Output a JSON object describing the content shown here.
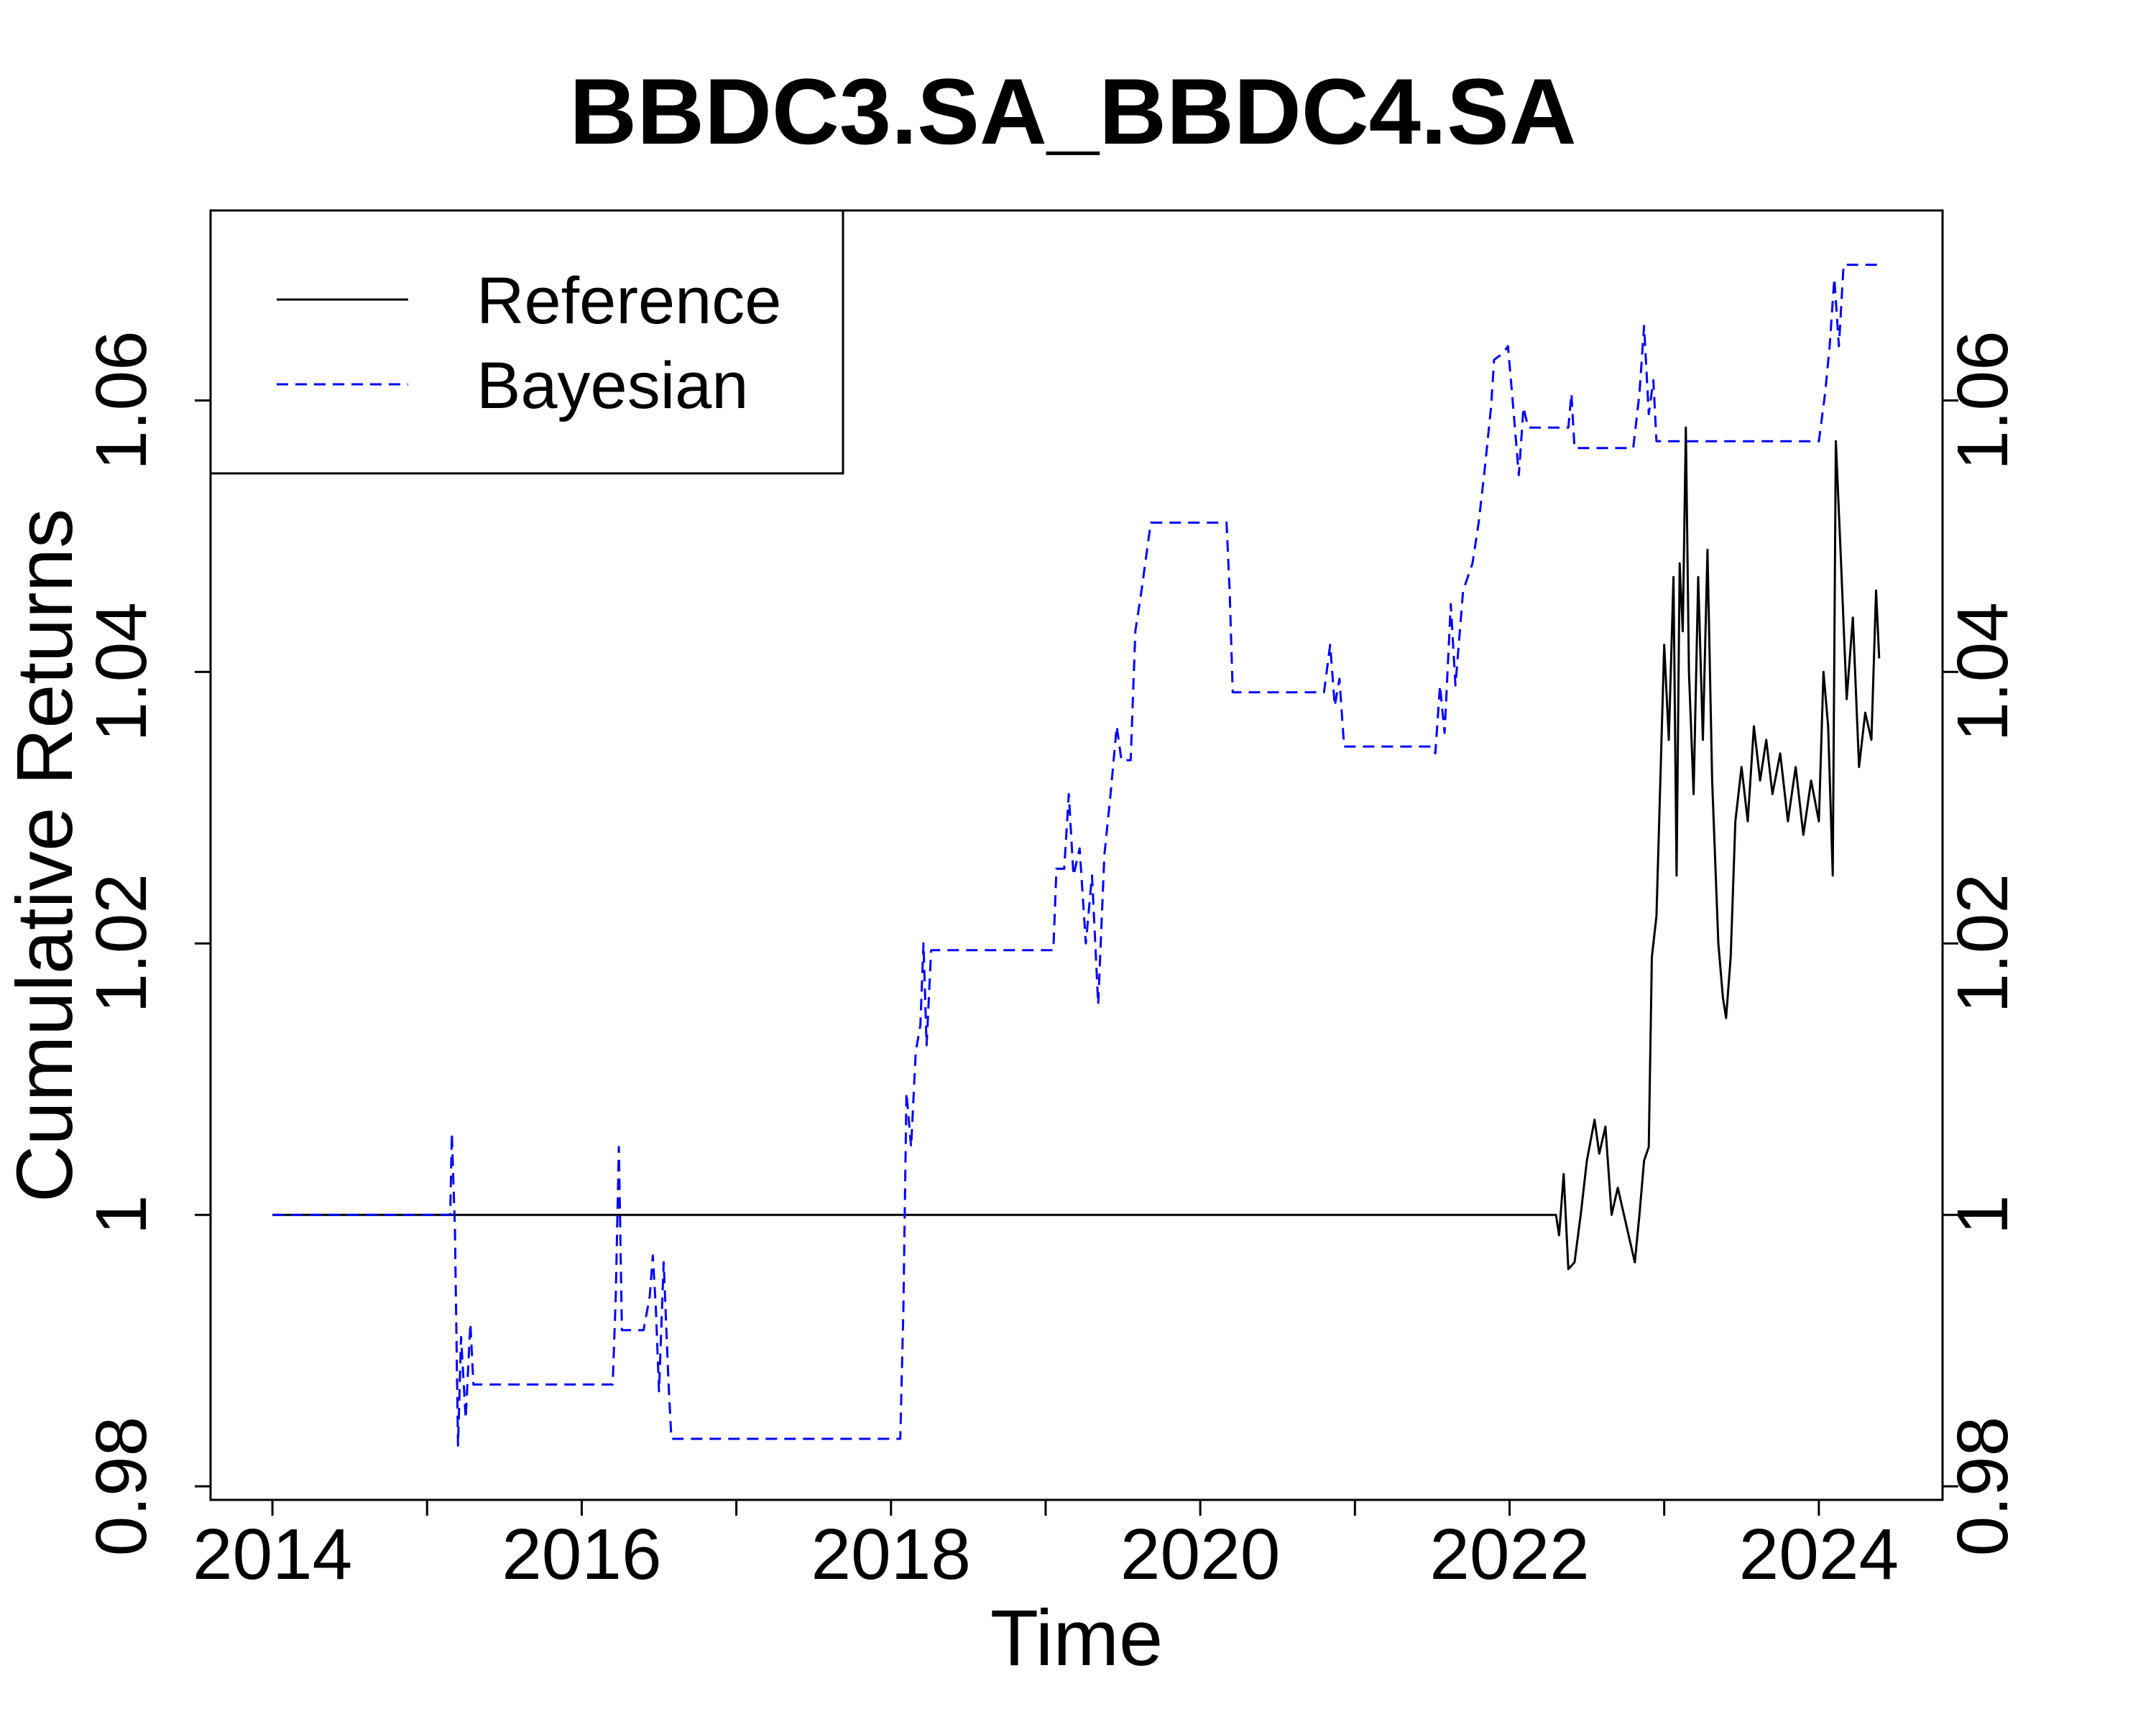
{
  "chart_data": {
    "type": "line",
    "title": "BBDC3.SA_BBDC4.SA",
    "xlabel": "Time",
    "ylabel": "Cumulative Returns",
    "xlim": [
      2013.6,
      2024.8
    ],
    "ylim": [
      0.979,
      1.074
    ],
    "x_ticks": [
      2014,
      2016,
      2018,
      2020,
      2022,
      2024
    ],
    "x_minor_ticks": [
      2015,
      2017,
      2019,
      2021,
      2023
    ],
    "y_ticks": [
      0.98,
      1.0,
      1.02,
      1.04,
      1.06
    ],
    "y_tick_labels": [
      "0.98",
      "1",
      "1.02",
      "1.04",
      "1.06"
    ],
    "legend": {
      "position": "top-left",
      "entries": [
        "Reference",
        "Bayesian"
      ]
    },
    "series": [
      {
        "name": "Reference",
        "color": "#000000",
        "style": "solid",
        "points": [
          [
            2014.0,
            1.0
          ],
          [
            2022.3,
            1.0
          ],
          [
            2022.32,
            0.9985
          ],
          [
            2022.35,
            1.003
          ],
          [
            2022.38,
            0.996
          ],
          [
            2022.42,
            0.9965
          ],
          [
            2022.46,
            1.0
          ],
          [
            2022.5,
            1.004
          ],
          [
            2022.55,
            1.007
          ],
          [
            2022.58,
            1.0045
          ],
          [
            2022.62,
            1.0065
          ],
          [
            2022.66,
            1.0
          ],
          [
            2022.7,
            1.002
          ],
          [
            2022.74,
            1.0
          ],
          [
            2022.78,
            0.998
          ],
          [
            2022.81,
            0.9965
          ],
          [
            2022.84,
            1.0
          ],
          [
            2022.87,
            1.004
          ],
          [
            2022.9,
            1.005
          ],
          [
            2022.92,
            1.019
          ],
          [
            2022.95,
            1.022
          ],
          [
            2022.98,
            1.034
          ],
          [
            2023.0,
            1.042
          ],
          [
            2023.03,
            1.035
          ],
          [
            2023.06,
            1.047
          ],
          [
            2023.08,
            1.025
          ],
          [
            2023.1,
            1.048
          ],
          [
            2023.12,
            1.043
          ],
          [
            2023.14,
            1.058
          ],
          [
            2023.16,
            1.04
          ],
          [
            2023.19,
            1.031
          ],
          [
            2023.22,
            1.047
          ],
          [
            2023.25,
            1.035
          ],
          [
            2023.28,
            1.049
          ],
          [
            2023.31,
            1.032
          ],
          [
            2023.35,
            1.02
          ],
          [
            2023.38,
            1.016
          ],
          [
            2023.4,
            1.0145
          ],
          [
            2023.43,
            1.019
          ],
          [
            2023.46,
            1.029
          ],
          [
            2023.5,
            1.033
          ],
          [
            2023.54,
            1.029
          ],
          [
            2023.58,
            1.036
          ],
          [
            2023.62,
            1.032
          ],
          [
            2023.66,
            1.035
          ],
          [
            2023.7,
            1.031
          ],
          [
            2023.75,
            1.034
          ],
          [
            2023.8,
            1.029
          ],
          [
            2023.85,
            1.033
          ],
          [
            2023.9,
            1.028
          ],
          [
            2023.95,
            1.032
          ],
          [
            2024.0,
            1.029
          ],
          [
            2024.03,
            1.04
          ],
          [
            2024.06,
            1.036
          ],
          [
            2024.09,
            1.025
          ],
          [
            2024.11,
            1.057
          ],
          [
            2024.14,
            1.049
          ],
          [
            2024.18,
            1.038
          ],
          [
            2024.22,
            1.044
          ],
          [
            2024.26,
            1.033
          ],
          [
            2024.3,
            1.037
          ],
          [
            2024.34,
            1.035
          ],
          [
            2024.37,
            1.046
          ],
          [
            2024.39,
            1.041
          ]
        ]
      },
      {
        "name": "Bayesian",
        "color": "#0000ff",
        "style": "dashed",
        "points": [
          [
            2014.0,
            1.0
          ],
          [
            2015.15,
            1.0
          ],
          [
            2015.16,
            1.006
          ],
          [
            2015.18,
            0.999
          ],
          [
            2015.2,
            0.983
          ],
          [
            2015.22,
            0.991
          ],
          [
            2015.25,
            0.985
          ],
          [
            2015.28,
            0.992
          ],
          [
            2015.3,
            0.9875
          ],
          [
            2016.2,
            0.9875
          ],
          [
            2016.22,
            0.994
          ],
          [
            2016.24,
            1.005
          ],
          [
            2016.26,
            0.9915
          ],
          [
            2016.4,
            0.9915
          ],
          [
            2016.44,
            0.994
          ],
          [
            2016.46,
            0.997
          ],
          [
            2016.48,
            0.993
          ],
          [
            2016.5,
            0.987
          ],
          [
            2016.53,
            0.9965
          ],
          [
            2016.56,
            0.988
          ],
          [
            2016.58,
            0.9835
          ],
          [
            2018.06,
            0.9835
          ],
          [
            2018.08,
            0.993
          ],
          [
            2018.1,
            1.009
          ],
          [
            2018.13,
            1.005
          ],
          [
            2018.16,
            1.012
          ],
          [
            2018.19,
            1.014
          ],
          [
            2018.21,
            1.02
          ],
          [
            2018.23,
            1.0125
          ],
          [
            2018.26,
            1.0195
          ],
          [
            2019.05,
            1.0195
          ],
          [
            2019.07,
            1.0255
          ],
          [
            2019.12,
            1.0255
          ],
          [
            2019.15,
            1.031
          ],
          [
            2019.18,
            1.025
          ],
          [
            2019.22,
            1.027
          ],
          [
            2019.26,
            1.02
          ],
          [
            2019.3,
            1.025
          ],
          [
            2019.34,
            1.0155
          ],
          [
            2019.38,
            1.0265
          ],
          [
            2019.42,
            1.031
          ],
          [
            2019.46,
            1.036
          ],
          [
            2019.49,
            1.0335
          ],
          [
            2019.55,
            1.0335
          ],
          [
            2019.58,
            1.043
          ],
          [
            2019.62,
            1.046
          ],
          [
            2019.65,
            1.0485
          ],
          [
            2019.68,
            1.051
          ],
          [
            2020.17,
            1.051
          ],
          [
            2020.19,
            1.046
          ],
          [
            2020.21,
            1.0385
          ],
          [
            2020.8,
            1.0385
          ],
          [
            2020.84,
            1.042
          ],
          [
            2020.87,
            1.0375
          ],
          [
            2020.9,
            1.0395
          ],
          [
            2020.93,
            1.0345
          ],
          [
            2021.5,
            1.0345
          ],
          [
            2021.52,
            1.034
          ],
          [
            2021.55,
            1.039
          ],
          [
            2021.58,
            1.0355
          ],
          [
            2021.62,
            1.045
          ],
          [
            2021.65,
            1.039
          ],
          [
            2021.7,
            1.046
          ],
          [
            2021.76,
            1.048
          ],
          [
            2021.8,
            1.051
          ],
          [
            2021.84,
            1.055
          ],
          [
            2021.88,
            1.0595
          ],
          [
            2021.9,
            1.063
          ],
          [
            2021.96,
            1.0635
          ],
          [
            2021.99,
            1.064
          ],
          [
            2022.02,
            1.06
          ],
          [
            2022.06,
            1.0545
          ],
          [
            2022.09,
            1.0595
          ],
          [
            2022.12,
            1.058
          ],
          [
            2022.38,
            1.058
          ],
          [
            2022.4,
            1.0605
          ],
          [
            2022.42,
            1.0565
          ],
          [
            2022.8,
            1.0565
          ],
          [
            2022.84,
            1.0605
          ],
          [
            2022.87,
            1.0655
          ],
          [
            2022.9,
            1.059
          ],
          [
            2022.93,
            1.0615
          ],
          [
            2022.95,
            1.057
          ],
          [
            2024.0,
            1.057
          ],
          [
            2024.04,
            1.0605
          ],
          [
            2024.07,
            1.064
          ],
          [
            2024.1,
            1.069
          ],
          [
            2024.13,
            1.064
          ],
          [
            2024.16,
            1.07
          ],
          [
            2024.38,
            1.07
          ]
        ]
      }
    ]
  }
}
